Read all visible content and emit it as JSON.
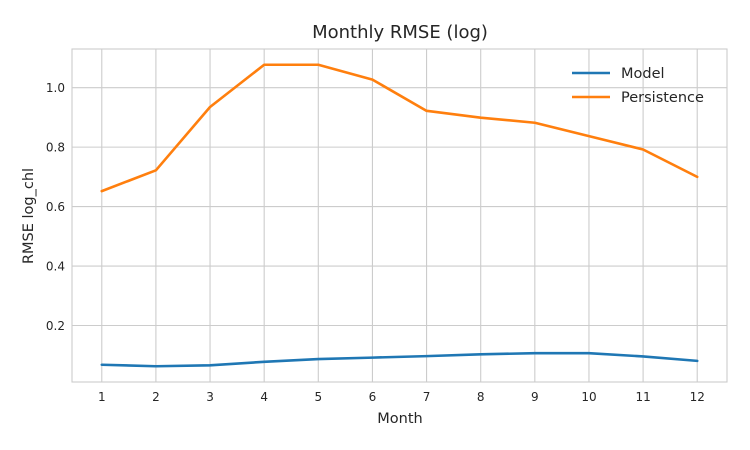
{
  "chart_data": {
    "type": "line",
    "title": "Monthly RMSE (log)",
    "xlabel": "Month",
    "ylabel": "RMSE log_chl",
    "x": [
      1,
      2,
      3,
      4,
      5,
      6,
      7,
      8,
      9,
      10,
      11,
      12
    ],
    "x_tick_labels": [
      "1",
      "2",
      "3",
      "4",
      "5",
      "6",
      "7",
      "8",
      "9",
      "10",
      "11",
      "12"
    ],
    "y_ticks": [
      0.2,
      0.4,
      0.6,
      0.8,
      1.0
    ],
    "y_tick_labels": [
      "0.2",
      "0.4",
      "0.6",
      "0.8",
      "1.0"
    ],
    "xlim": [
      0.45,
      12.55
    ],
    "ylim": [
      0.01,
      1.13
    ],
    "grid": true,
    "legend_position": "top-right",
    "series": [
      {
        "name": "Model",
        "color": "#1f77b4",
        "values": [
          0.068,
          0.063,
          0.066,
          0.078,
          0.087,
          0.092,
          0.097,
          0.103,
          0.107,
          0.107,
          0.096,
          0.081
        ]
      },
      {
        "name": "Persistence",
        "color": "#ff7f0e",
        "values": [
          0.652,
          0.722,
          0.935,
          1.077,
          1.077,
          1.027,
          0.922,
          0.899,
          0.882,
          0.837,
          0.792,
          0.7
        ]
      }
    ]
  }
}
